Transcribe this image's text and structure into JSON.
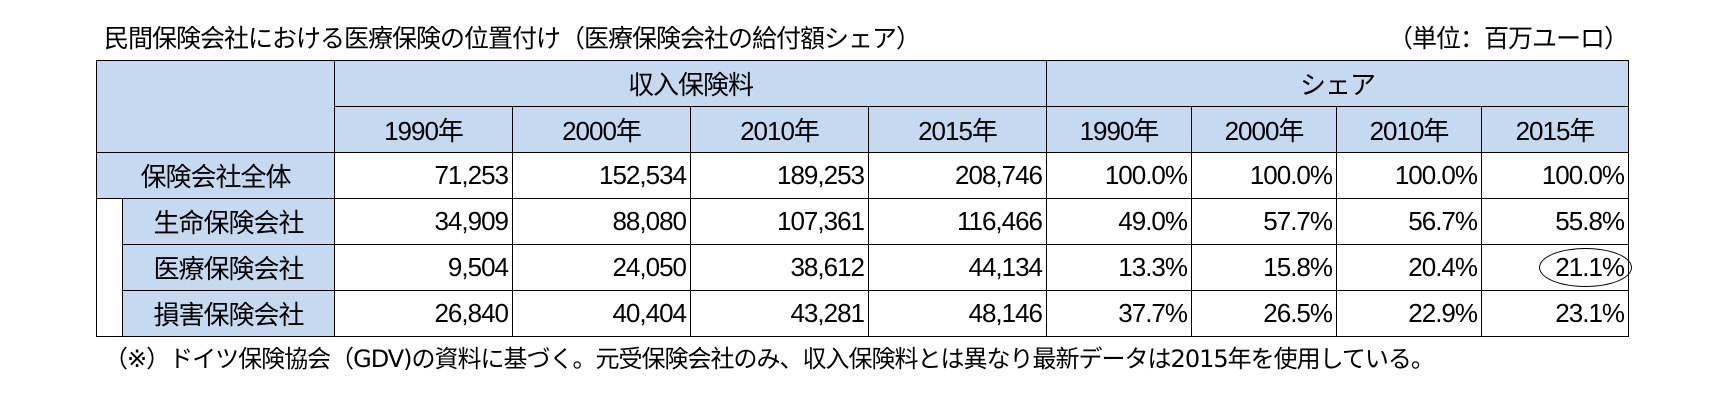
{
  "title": "民間保険会社における医療保険の位置付け（医療保険会社の給付額シェア）",
  "unit": "（単位：百万ユーロ）",
  "table": {
    "group_headers": [
      "収入保険料",
      "シェア"
    ],
    "year_headers": [
      "1990年",
      "2000年",
      "2010年",
      "2015年",
      "1990年",
      "2000年",
      "2010年",
      "2015年"
    ],
    "rows": [
      {
        "label": "保険会社全体",
        "cells": [
          "71,253",
          "152,534",
          "189,253",
          "208,746",
          "100.0%",
          "100.0%",
          "100.0%",
          "100.0%"
        ]
      },
      {
        "label": "生命保険会社",
        "cells": [
          "34,909",
          "88,080",
          "107,361",
          "116,466",
          "49.0%",
          "57.7%",
          "56.7%",
          "55.8%"
        ]
      },
      {
        "label": "医療保険会社",
        "cells": [
          "9,504",
          "24,050",
          "38,612",
          "44,134",
          "13.3%",
          "15.8%",
          "20.4%",
          "21.1%"
        ]
      },
      {
        "label": "損害保険会社",
        "cells": [
          "26,840",
          "40,404",
          "43,281",
          "48,146",
          "37.7%",
          "26.5%",
          "22.9%",
          "23.1%"
        ]
      }
    ]
  },
  "note": "（※）ドイツ保険協会（GDV)の資料に基づく。元受保険会社のみ、収入保険料とは異なり最新データは2015年を使用している。"
}
